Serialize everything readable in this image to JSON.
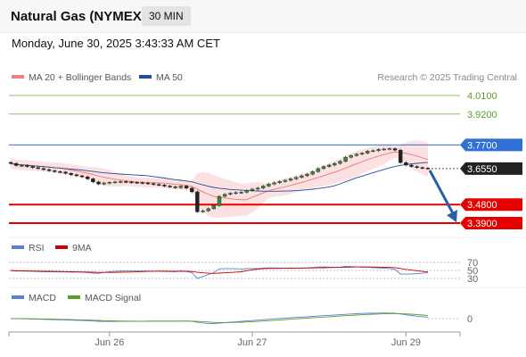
{
  "header": {
    "title": "Natural Gas (NYMEX)",
    "timeframe": "30 MIN",
    "datetime": "Monday, June 30, 2025 3:43:33 AM CET"
  },
  "legend": {
    "ma20": "MA 20 + Bollinger Bands",
    "ma50": "MA 50",
    "credit": "Research © 2025 Trading Central",
    "rsi": "RSI",
    "rsi_ma": "9MA",
    "macd": "MACD",
    "macd_signal": "MACD Signal"
  },
  "colors": {
    "ma20": "#f08080",
    "ma50": "#1f4e9c",
    "resistance_green": "#8cc66b",
    "pivot_blue": "#2f6fd6",
    "support_red": "#e60000",
    "rsi": "#5b7fd6",
    "rsi_ma": "#d00000",
    "macd": "#5b7fd6",
    "macd_signal": "#5a9e28",
    "arrow": "#2a5fa8"
  },
  "chart_data": {
    "type": "candlestick",
    "x_ticks": [
      "Jun 26",
      "Jun 27",
      "Jun 29"
    ],
    "price_range": [
      3.34,
      4.06
    ],
    "levels": [
      {
        "label": "4.0100",
        "value": 4.01,
        "kind": "resistance"
      },
      {
        "label": "3.9200",
        "value": 3.92,
        "kind": "resistance"
      },
      {
        "label": "3.7700",
        "value": 3.77,
        "kind": "pivot"
      },
      {
        "label": "3.6550",
        "value": 3.655,
        "kind": "last"
      },
      {
        "label": "3.4800",
        "value": 3.48,
        "kind": "support"
      },
      {
        "label": "3.3900",
        "value": 3.39,
        "kind": "support"
      }
    ],
    "forecast_arrow": {
      "from": 3.655,
      "to": 3.42
    },
    "closes": [
      3.68,
      3.67,
      3.67,
      3.665,
      3.66,
      3.655,
      3.65,
      3.645,
      3.64,
      3.638,
      3.632,
      3.625,
      3.62,
      3.615,
      3.605,
      3.59,
      3.58,
      3.585,
      3.588,
      3.59,
      3.592,
      3.59,
      3.588,
      3.587,
      3.585,
      3.582,
      3.578,
      3.575,
      3.57,
      3.566,
      3.562,
      3.57,
      3.56,
      3.542,
      3.445,
      3.45,
      3.46,
      3.475,
      3.52,
      3.53,
      3.535,
      3.538,
      3.54,
      3.548,
      3.555,
      3.56,
      3.57,
      3.58,
      3.586,
      3.592,
      3.598,
      3.605,
      3.612,
      3.62,
      3.628,
      3.64,
      3.655,
      3.665,
      3.672,
      3.68,
      3.69,
      3.71,
      3.718,
      3.725,
      3.73,
      3.74,
      3.742,
      3.748,
      3.75,
      3.752,
      3.745,
      3.684,
      3.672,
      3.665,
      3.66,
      3.657,
      3.655
    ],
    "rsi": {
      "ticks": [
        70,
        50,
        30
      ]
    },
    "macd": {
      "ticks": [
        0
      ]
    }
  }
}
